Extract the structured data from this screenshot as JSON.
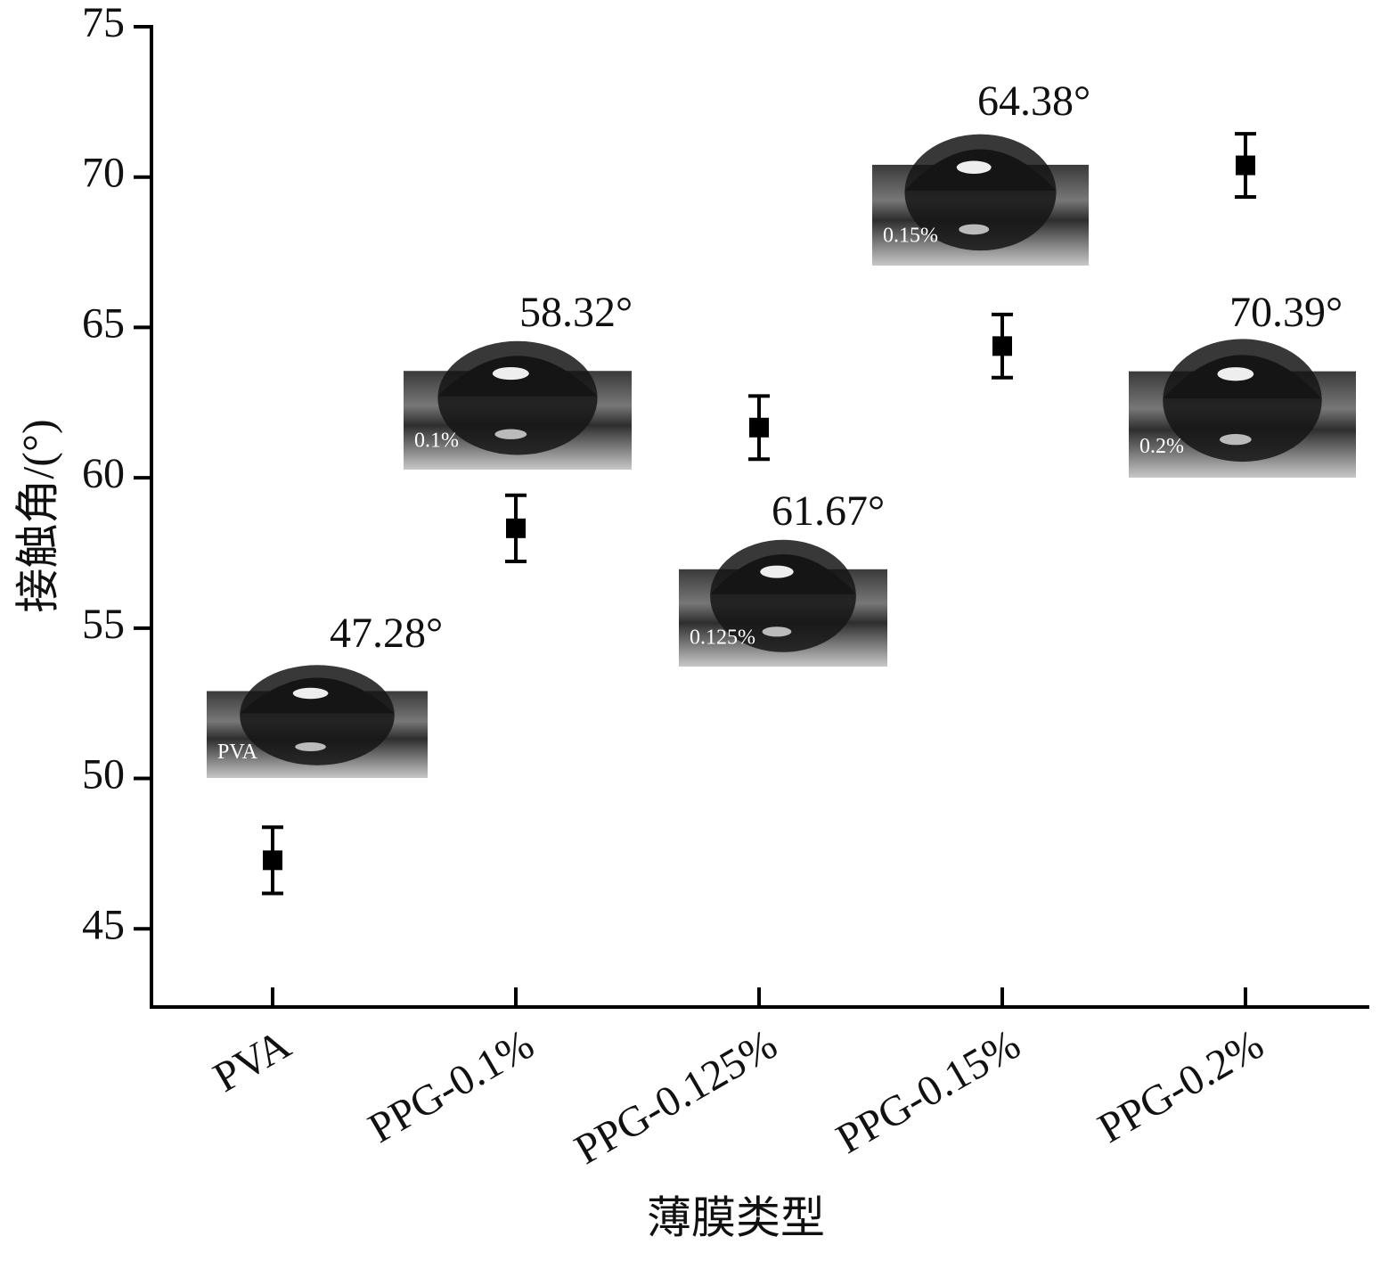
{
  "chart_data": {
    "type": "scatter",
    "x_label": "薄膜类型",
    "y_label": "接触角/(°)",
    "categories": [
      "PVA",
      "PPG-0.1%",
      "PPG-0.125%",
      "PPG-0.15%",
      "PPG-0.2%"
    ],
    "values": [
      47.28,
      58.32,
      61.67,
      64.38,
      70.39
    ],
    "errors": [
      1.1,
      1.1,
      1.05,
      1.05,
      1.05
    ],
    "value_labels": [
      "47.28°",
      "58.32°",
      "61.67°",
      "64.38°",
      "70.39°"
    ],
    "inset_labels": [
      "PVA",
      "0.1%",
      "0.125%",
      "0.15%",
      "0.2%"
    ],
    "color": "#000000",
    "ylim": [
      42.4,
      75
    ],
    "yticks": [
      45,
      50,
      55,
      60,
      65,
      70,
      75
    ]
  }
}
